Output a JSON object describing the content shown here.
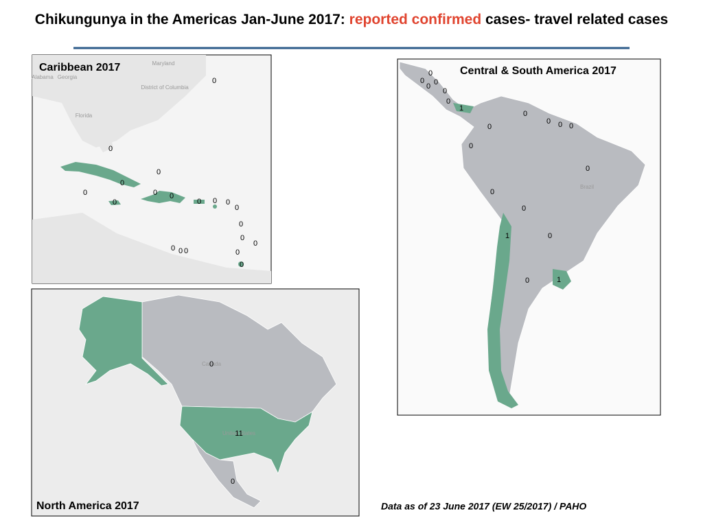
{
  "header": {
    "title_start": "Chikungunya in the Americas Jan-June 2017: ",
    "title_highlight": "reported confirmed",
    "title_end": " cases- travel related cases"
  },
  "caribbean": {
    "title": "Caribbean 2017",
    "places": [
      "Maryland",
      "District of Columbia",
      "Alabama",
      "Georgia",
      "Florida"
    ],
    "counts": [
      0,
      0,
      0,
      0,
      0,
      0,
      0,
      0,
      0,
      0,
      0,
      0,
      0,
      0,
      0,
      0,
      0,
      0,
      0,
      0
    ]
  },
  "south_america": {
    "title": "Central & South America  2017",
    "places": [
      "Brazil"
    ],
    "counts": [
      0,
      0,
      0,
      0,
      0,
      0,
      1,
      0,
      0,
      0,
      0,
      0,
      0,
      0,
      0,
      0,
      1,
      0,
      0,
      1
    ]
  },
  "north_america": {
    "title": "North America  2017",
    "places": [
      "Canada",
      "United States"
    ],
    "counts": [
      0,
      11,
      0
    ]
  },
  "footer": {
    "note": "Data as of 23 June 2017 (EW 25/2017) / PAHO"
  }
}
